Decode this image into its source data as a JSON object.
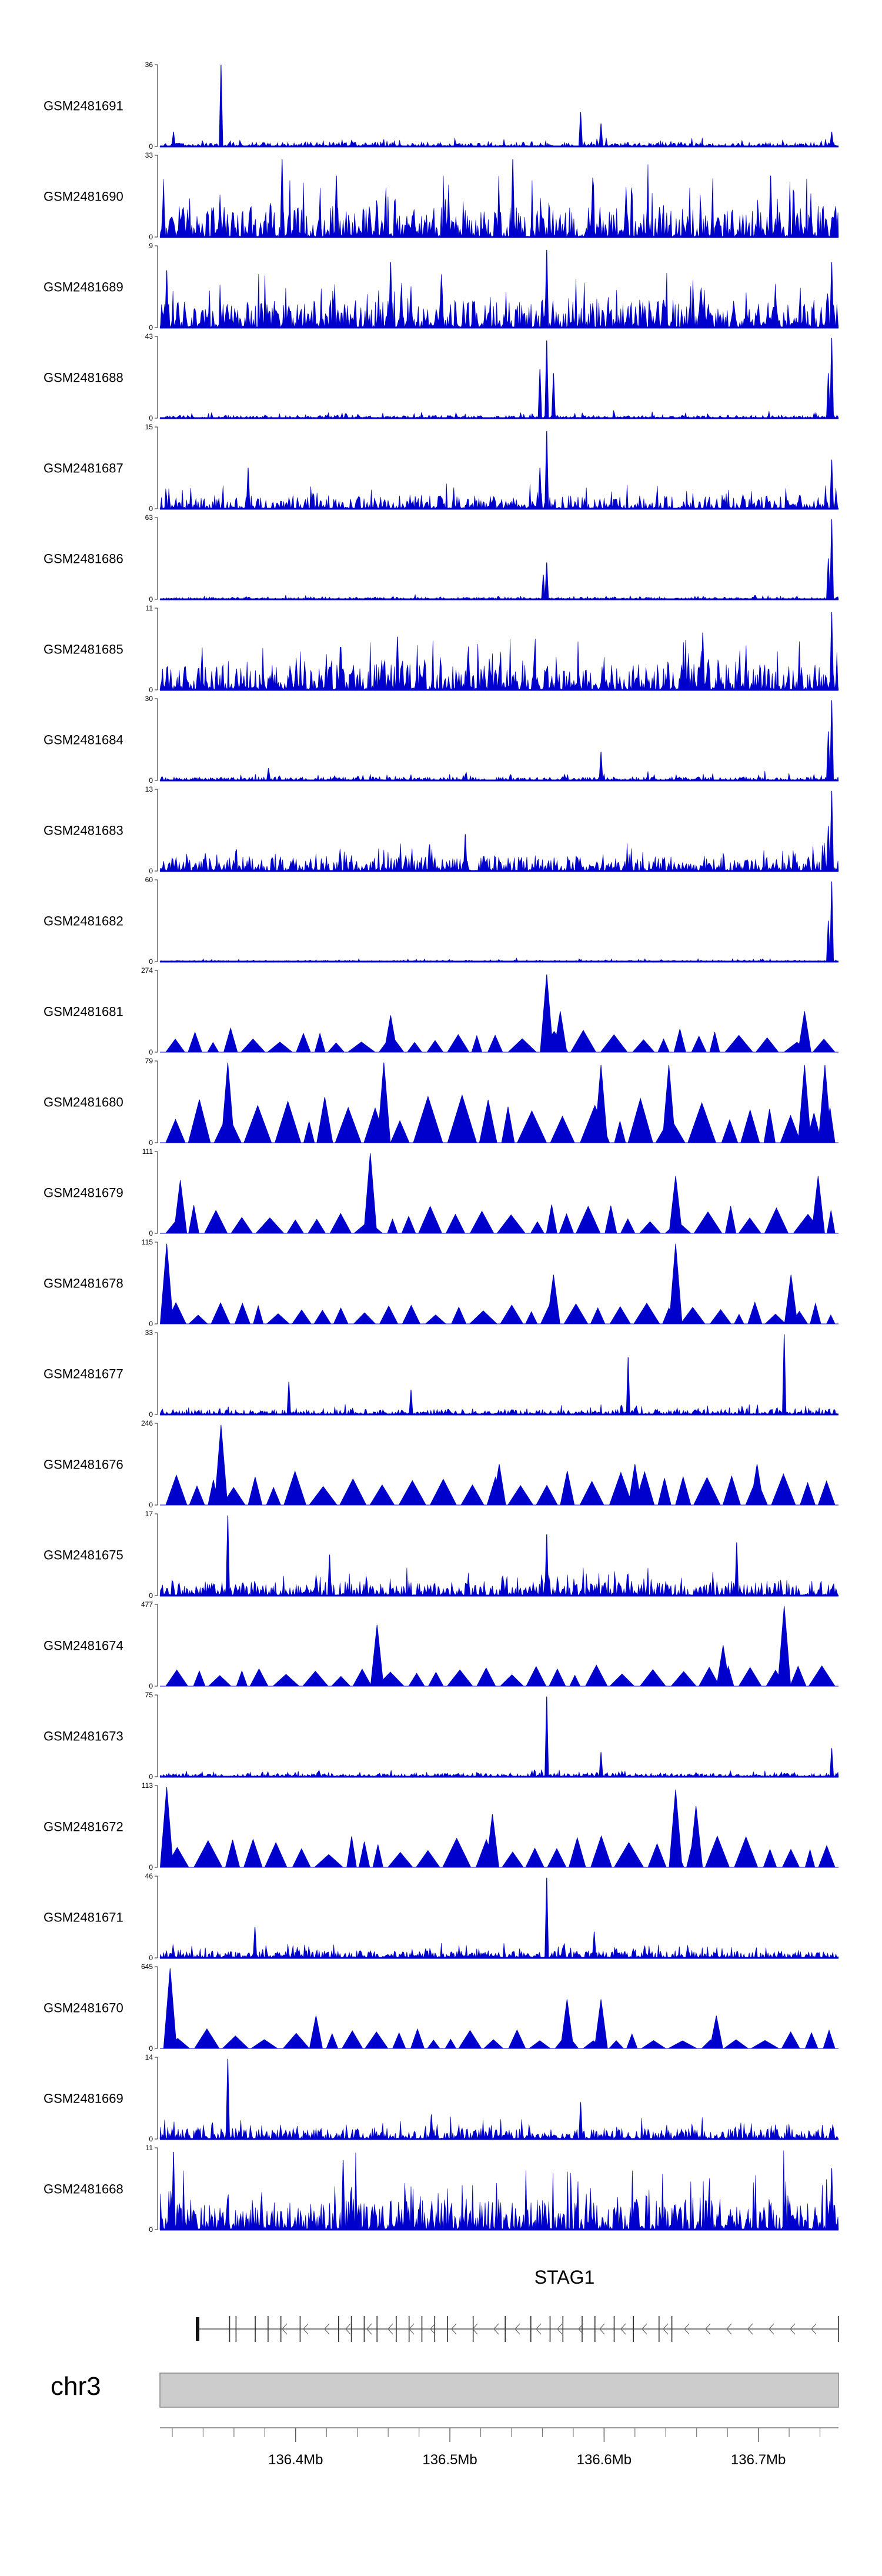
{
  "chart_data": {
    "type": "area",
    "title": "",
    "color": "#0000CC",
    "tracks": [
      {
        "label": "GSM2481691",
        "ymax": "36",
        "ymin": "0",
        "style": "dense",
        "seed": 1,
        "base": 0.06,
        "spikes": [
          [
            0.09,
            1.0
          ],
          [
            0.62,
            0.42
          ],
          [
            0.65,
            0.28
          ],
          [
            0.02,
            0.18
          ],
          [
            0.99,
            0.18
          ]
        ]
      },
      {
        "label": "GSM2481690",
        "ymax": "33",
        "ymin": "0",
        "style": "dense",
        "seed": 2,
        "base": 0.42,
        "spikes": [
          [
            0.18,
            0.95
          ],
          [
            0.52,
            0.95
          ],
          [
            0.26,
            0.75
          ],
          [
            0.9,
            0.75
          ]
        ]
      },
      {
        "label": "GSM2481689",
        "ymax": "9",
        "ymin": "0",
        "style": "dense",
        "seed": 3,
        "base": 0.38,
        "spikes": [
          [
            0.57,
            0.95
          ],
          [
            0.34,
            0.8
          ],
          [
            0.99,
            0.8
          ],
          [
            0.01,
            0.7
          ]
        ]
      },
      {
        "label": "GSM2481688",
        "ymax": "43",
        "ymin": "0",
        "style": "dense",
        "seed": 4,
        "base": 0.04,
        "spikes": [
          [
            0.57,
            0.95
          ],
          [
            0.56,
            0.6
          ],
          [
            0.58,
            0.55
          ],
          [
            0.99,
            0.98
          ],
          [
            0.985,
            0.55
          ]
        ]
      },
      {
        "label": "GSM2481687",
        "ymax": "15",
        "ymin": "0",
        "style": "dense",
        "seed": 5,
        "base": 0.18,
        "spikes": [
          [
            0.57,
            0.95
          ],
          [
            0.56,
            0.5
          ],
          [
            0.99,
            0.6
          ],
          [
            0.13,
            0.5
          ]
        ]
      },
      {
        "label": "GSM2481686",
        "ymax": "63",
        "ymin": "0",
        "style": "dense",
        "seed": 6,
        "base": 0.03,
        "spikes": [
          [
            0.57,
            0.45
          ],
          [
            0.565,
            0.3
          ],
          [
            0.99,
            0.98
          ],
          [
            0.985,
            0.5
          ]
        ]
      },
      {
        "label": "GSM2481685",
        "ymax": "11",
        "ymin": "0",
        "style": "dense",
        "seed": 7,
        "base": 0.35,
        "spikes": [
          [
            0.99,
            0.95
          ],
          [
            0.8,
            0.7
          ],
          [
            0.35,
            0.65
          ]
        ]
      },
      {
        "label": "GSM2481684",
        "ymax": "30",
        "ymin": "0",
        "style": "dense",
        "seed": 8,
        "base": 0.05,
        "spikes": [
          [
            0.65,
            0.35
          ],
          [
            0.16,
            0.15
          ],
          [
            0.99,
            0.98
          ],
          [
            0.985,
            0.6
          ]
        ]
      },
      {
        "label": "GSM2481683",
        "ymax": "13",
        "ymin": "0",
        "style": "dense",
        "seed": 9,
        "base": 0.2,
        "spikes": [
          [
            0.99,
            0.98
          ],
          [
            0.985,
            0.55
          ],
          [
            0.45,
            0.45
          ]
        ]
      },
      {
        "label": "GSM2481682",
        "ymax": "60",
        "ymin": "0",
        "style": "dense",
        "seed": 10,
        "base": 0.02,
        "spikes": [
          [
            0.99,
            0.98
          ],
          [
            0.985,
            0.5
          ]
        ]
      },
      {
        "label": "GSM2481681",
        "ymax": "274",
        "ymin": "0",
        "style": "tri",
        "seed": 11,
        "base": 0.25,
        "spikes": [
          [
            0.57,
            0.95
          ],
          [
            0.59,
            0.5
          ],
          [
            0.34,
            0.45
          ],
          [
            0.95,
            0.5
          ]
        ]
      },
      {
        "label": "GSM2481680",
        "ymax": "79",
        "ymin": "0",
        "style": "tri",
        "seed": 12,
        "base": 0.5,
        "spikes": [
          [
            0.1,
            0.98
          ],
          [
            0.33,
            0.98
          ],
          [
            0.65,
            0.95
          ],
          [
            0.75,
            0.95
          ],
          [
            0.95,
            0.95
          ],
          [
            0.98,
            0.95
          ]
        ]
      },
      {
        "label": "GSM2481679",
        "ymax": "111",
        "ymin": "0",
        "style": "tri",
        "seed": 13,
        "base": 0.3,
        "spikes": [
          [
            0.31,
            0.98
          ],
          [
            0.97,
            0.7
          ],
          [
            0.03,
            0.65
          ],
          [
            0.76,
            0.7
          ]
        ]
      },
      {
        "label": "GSM2481678",
        "ymax": "115",
        "ymin": "0",
        "style": "tri",
        "seed": 14,
        "base": 0.22,
        "spikes": [
          [
            0.01,
            0.98
          ],
          [
            0.76,
            0.98
          ],
          [
            0.93,
            0.6
          ],
          [
            0.58,
            0.6
          ]
        ]
      },
      {
        "label": "GSM2481677",
        "ymax": "33",
        "ymin": "0",
        "style": "dense",
        "seed": 15,
        "base": 0.07,
        "spikes": [
          [
            0.92,
            0.98
          ],
          [
            0.69,
            0.7
          ],
          [
            0.19,
            0.4
          ],
          [
            0.37,
            0.3
          ]
        ]
      },
      {
        "label": "GSM2481676",
        "ymax": "246",
        "ymin": "0",
        "style": "tri",
        "seed": 16,
        "base": 0.35,
        "spikes": [
          [
            0.09,
            0.98
          ],
          [
            0.5,
            0.5
          ],
          [
            0.7,
            0.5
          ],
          [
            0.88,
            0.5
          ]
        ]
      },
      {
        "label": "GSM2481675",
        "ymax": "17",
        "ymin": "0",
        "style": "dense",
        "seed": 17,
        "base": 0.2,
        "spikes": [
          [
            0.1,
            0.98
          ],
          [
            0.57,
            0.75
          ],
          [
            0.85,
            0.65
          ],
          [
            0.25,
            0.5
          ]
        ]
      },
      {
        "label": "GSM2481674",
        "ymax": "477",
        "ymin": "0",
        "style": "tri",
        "seed": 18,
        "base": 0.22,
        "spikes": [
          [
            0.32,
            0.75
          ],
          [
            0.92,
            0.98
          ],
          [
            0.83,
            0.5
          ]
        ]
      },
      {
        "label": "GSM2481673",
        "ymax": "75",
        "ymin": "0",
        "style": "dense",
        "seed": 19,
        "base": 0.05,
        "spikes": [
          [
            0.57,
            0.98
          ],
          [
            0.65,
            0.3
          ],
          [
            0.99,
            0.35
          ]
        ]
      },
      {
        "label": "GSM2481672",
        "ymax": "113",
        "ymin": "0",
        "style": "tri",
        "seed": 20,
        "base": 0.32,
        "spikes": [
          [
            0.01,
            0.98
          ],
          [
            0.49,
            0.65
          ],
          [
            0.76,
            0.95
          ],
          [
            0.79,
            0.75
          ]
        ]
      },
      {
        "label": "GSM2481671",
        "ymax": "46",
        "ymin": "0",
        "style": "dense",
        "seed": 21,
        "base": 0.1,
        "spikes": [
          [
            0.57,
            0.98
          ],
          [
            0.14,
            0.38
          ],
          [
            0.64,
            0.32
          ]
        ]
      },
      {
        "label": "GSM2481670",
        "ymax": "645",
        "ymin": "0",
        "style": "tri",
        "seed": 22,
        "base": 0.2,
        "spikes": [
          [
            0.015,
            0.98
          ],
          [
            0.23,
            0.4
          ],
          [
            0.6,
            0.6
          ],
          [
            0.65,
            0.6
          ],
          [
            0.82,
            0.4
          ]
        ]
      },
      {
        "label": "GSM2481669",
        "ymax": "14",
        "ymin": "0",
        "style": "dense",
        "seed": 23,
        "base": 0.15,
        "spikes": [
          [
            0.1,
            0.98
          ],
          [
            0.62,
            0.45
          ],
          [
            0.4,
            0.3
          ]
        ]
      },
      {
        "label": "GSM2481668",
        "ymax": "11",
        "ymin": "0",
        "style": "dense",
        "seed": 24,
        "base": 0.42,
        "spikes": [
          [
            0.02,
            0.95
          ],
          [
            0.27,
            0.85
          ],
          [
            0.99,
            0.75
          ]
        ]
      }
    ],
    "gene": {
      "name": "STAG1",
      "strand": "-",
      "exons_frac": [
        0.05,
        0.06,
        0.09,
        0.11,
        0.13,
        0.16,
        0.22,
        0.24,
        0.26,
        0.28,
        0.31,
        0.33,
        0.35,
        0.37,
        0.39,
        0.43,
        0.48,
        0.52,
        0.55,
        0.57,
        0.6,
        0.62,
        0.65,
        0.68,
        0.72,
        0.74
      ]
    },
    "chromosome": {
      "name": "chr3"
    },
    "x_axis": {
      "ticks": [
        {
          "value": 136.4,
          "label": "136.4Mb"
        },
        {
          "value": 136.5,
          "label": "136.5Mb"
        },
        {
          "value": 136.6,
          "label": "136.6Mb"
        },
        {
          "value": 136.7,
          "label": "136.7Mb"
        }
      ],
      "xlim": [
        136.312,
        136.752
      ],
      "minor_step": 0.02
    }
  }
}
